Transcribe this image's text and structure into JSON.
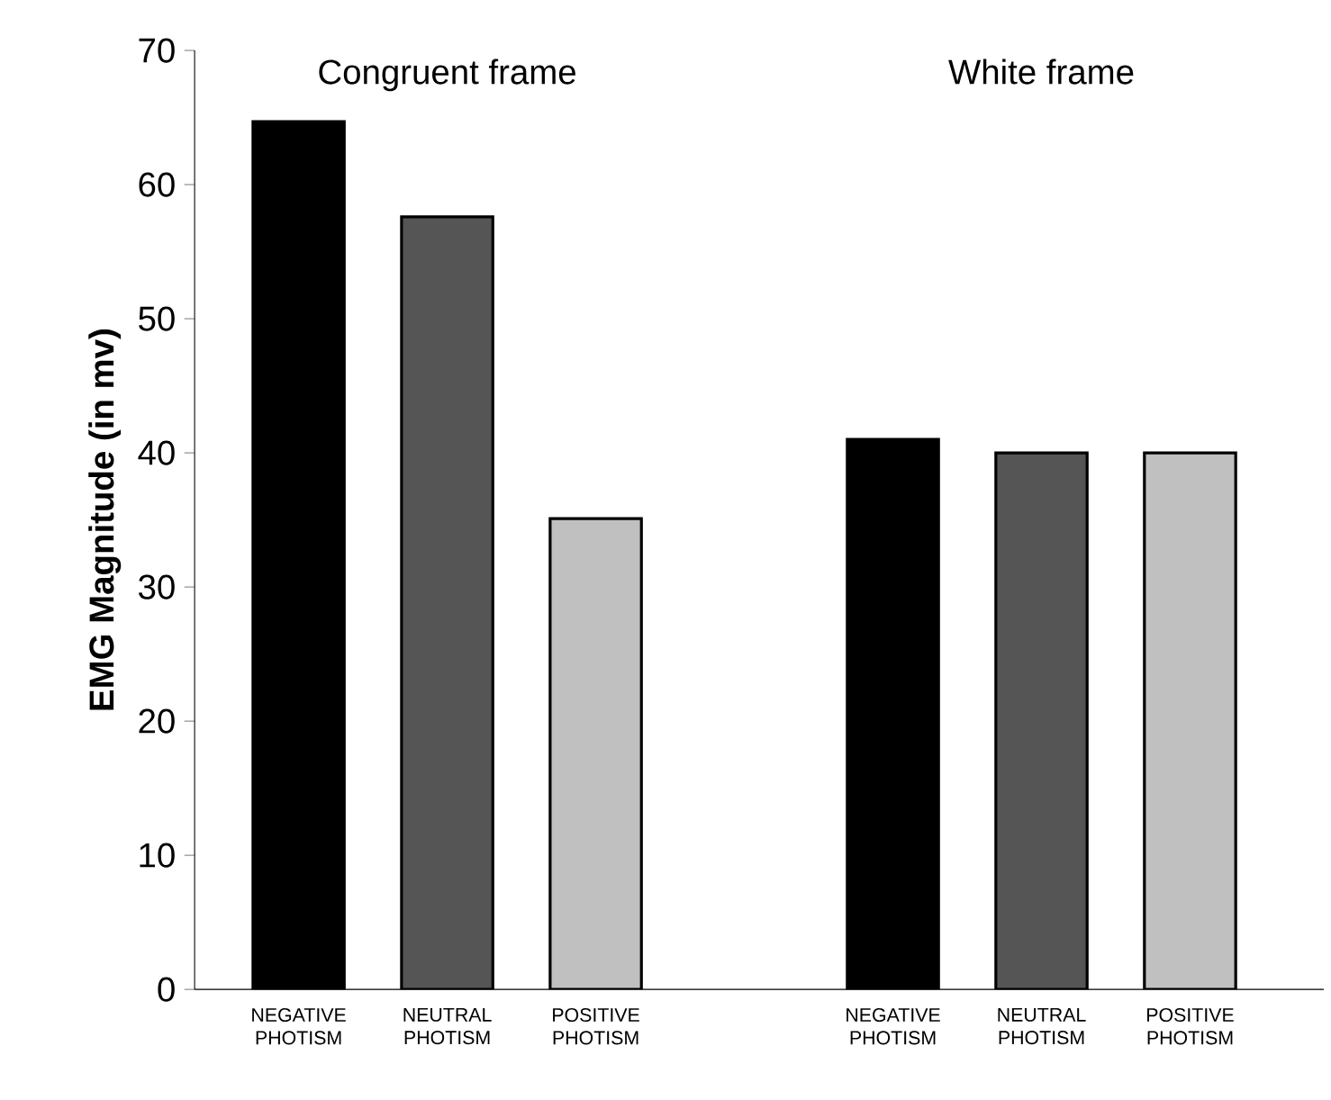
{
  "chart_data": {
    "type": "bar",
    "ylabel": "EMG Magnitude (in mv)",
    "categories": [
      "NEGATIVE PHOTISM",
      "NEUTRAL PHOTISM",
      "POSITIVE PHOTISM",
      null,
      "NEGATIVE PHOTISM",
      "NEUTRAL PHOTISM",
      "POSITIVE PHOTISM"
    ],
    "values": [
      64.7,
      57.6,
      35.1,
      null,
      41,
      40,
      40
    ],
    "colors": [
      "#000000",
      "#555555",
      "#c0c0c0",
      null,
      "#000000",
      "#555555",
      "#c0c0c0"
    ],
    "annotations": [
      "Congruent frame",
      "White frame"
    ],
    "ylim": [
      0,
      70
    ],
    "yticks": [
      0,
      10,
      20,
      30,
      40,
      50,
      60,
      70
    ],
    "grid": false
  }
}
